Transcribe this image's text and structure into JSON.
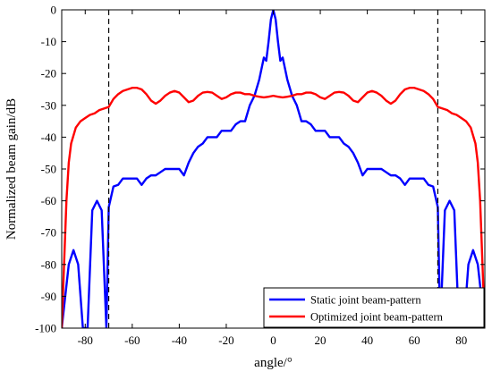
{
  "chart_data": {
    "type": "line",
    "title": "",
    "xlabel": "angle/°",
    "ylabel": "Normalized beam gain/dB",
    "xlim": [
      -90,
      90
    ],
    "ylim": [
      -100,
      0
    ],
    "xticks": [
      -80,
      -60,
      -40,
      -20,
      0,
      20,
      40,
      60,
      80
    ],
    "yticks": [
      0,
      -10,
      -20,
      -30,
      -40,
      -50,
      -60,
      -70,
      -80,
      -90,
      -100
    ],
    "grid": false,
    "legend_position": "bottom-right",
    "reference_lines": [
      {
        "type": "vertical",
        "x": -70,
        "style": "dashed",
        "color": "#000000"
      },
      {
        "type": "vertical",
        "x": 70,
        "style": "dashed",
        "color": "#000000"
      }
    ],
    "series": [
      {
        "name": "Static joint beam-pattern",
        "color": "#0000ff",
        "lobe_pattern": "oscillating sidelobes with deep nulls",
        "points": [
          [
            -90,
            -100
          ],
          [
            -87,
            -80
          ],
          [
            -85,
            -75.5
          ],
          [
            -83,
            -80
          ],
          [
            -81,
            -100
          ],
          [
            -79,
            -100
          ],
          [
            -77,
            -63
          ],
          [
            -75,
            -60
          ],
          [
            -73,
            -63
          ],
          [
            -71,
            -100
          ],
          [
            -70,
            -62
          ],
          [
            -68,
            -55.5
          ],
          [
            -66,
            -55
          ],
          [
            -64,
            -53
          ],
          [
            -62,
            -53
          ],
          [
            -60,
            -53
          ],
          [
            -58,
            -53
          ],
          [
            -56,
            -55
          ],
          [
            -54,
            -53
          ],
          [
            -52,
            -52
          ],
          [
            -50,
            -52
          ],
          [
            -48,
            -51
          ],
          [
            -46,
            -50
          ],
          [
            -44,
            -50
          ],
          [
            -42,
            -50
          ],
          [
            -40,
            -50
          ],
          [
            -38,
            -52
          ],
          [
            -36,
            -48
          ],
          [
            -34,
            -45
          ],
          [
            -32,
            -43
          ],
          [
            -30,
            -42
          ],
          [
            -28,
            -40
          ],
          [
            -26,
            -40
          ],
          [
            -24,
            -40
          ],
          [
            -22,
            -38
          ],
          [
            -20,
            -38
          ],
          [
            -18,
            -38
          ],
          [
            -16,
            -36
          ],
          [
            -14,
            -35
          ],
          [
            -12,
            -35
          ],
          [
            -10,
            -30
          ],
          [
            -8,
            -27
          ],
          [
            -6,
            -22
          ],
          [
            -4,
            -15
          ],
          [
            -3,
            -16
          ],
          [
            -2,
            -10
          ],
          [
            -1,
            -3
          ],
          [
            0,
            0
          ],
          [
            1,
            -3
          ],
          [
            2,
            -10
          ],
          [
            3,
            -16
          ],
          [
            4,
            -15
          ],
          [
            6,
            -22
          ],
          [
            8,
            -27
          ],
          [
            10,
            -30
          ],
          [
            12,
            -35
          ],
          [
            14,
            -35
          ],
          [
            16,
            -36
          ],
          [
            18,
            -38
          ],
          [
            20,
            -38
          ],
          [
            22,
            -38
          ],
          [
            24,
            -40
          ],
          [
            26,
            -40
          ],
          [
            28,
            -40
          ],
          [
            30,
            -42
          ],
          [
            32,
            -43
          ],
          [
            34,
            -45
          ],
          [
            36,
            -48
          ],
          [
            38,
            -52
          ],
          [
            40,
            -50
          ],
          [
            42,
            -50
          ],
          [
            44,
            -50
          ],
          [
            46,
            -50
          ],
          [
            48,
            -51
          ],
          [
            50,
            -52
          ],
          [
            52,
            -52
          ],
          [
            54,
            -53
          ],
          [
            56,
            -55
          ],
          [
            58,
            -53
          ],
          [
            60,
            -53
          ],
          [
            62,
            -53
          ],
          [
            64,
            -53
          ],
          [
            66,
            -55
          ],
          [
            68,
            -55.5
          ],
          [
            70,
            -62
          ],
          [
            71,
            -100
          ],
          [
            73,
            -63
          ],
          [
            75,
            -60
          ],
          [
            77,
            -63
          ],
          [
            79,
            -100
          ],
          [
            81,
            -100
          ],
          [
            83,
            -80
          ],
          [
            85,
            -75.5
          ],
          [
            87,
            -80
          ],
          [
            90,
            -100
          ]
        ]
      },
      {
        "name": "Optimized joint beam-pattern",
        "color": "#ff0000",
        "points": [
          [
            -90,
            -100
          ],
          [
            -89,
            -80
          ],
          [
            -88,
            -60
          ],
          [
            -87,
            -48
          ],
          [
            -86,
            -42
          ],
          [
            -84,
            -37
          ],
          [
            -82,
            -35
          ],
          [
            -80,
            -34
          ],
          [
            -78,
            -33
          ],
          [
            -76,
            -32.5
          ],
          [
            -74,
            -31.5
          ],
          [
            -72,
            -31
          ],
          [
            -70,
            -30.5
          ],
          [
            -68,
            -28
          ],
          [
            -66,
            -26.5
          ],
          [
            -64,
            -25.5
          ],
          [
            -62,
            -25
          ],
          [
            -60,
            -24.5
          ],
          [
            -58,
            -24.5
          ],
          [
            -56,
            -25
          ],
          [
            -54,
            -26.5
          ],
          [
            -52,
            -28.5
          ],
          [
            -50,
            -29.5
          ],
          [
            -48,
            -28.5
          ],
          [
            -46,
            -27
          ],
          [
            -44,
            -26
          ],
          [
            -42,
            -25.5
          ],
          [
            -40,
            -26
          ],
          [
            -38,
            -27.5
          ],
          [
            -36,
            -29
          ],
          [
            -34,
            -28.5
          ],
          [
            -32,
            -27
          ],
          [
            -30,
            -26
          ],
          [
            -28,
            -25.8
          ],
          [
            -26,
            -26
          ],
          [
            -24,
            -27
          ],
          [
            -22,
            -28
          ],
          [
            -20,
            -27.5
          ],
          [
            -18,
            -26.5
          ],
          [
            -16,
            -26
          ],
          [
            -14,
            -26
          ],
          [
            -12,
            -26.5
          ],
          [
            -10,
            -26.5
          ],
          [
            -8,
            -27
          ],
          [
            -6,
            -27.3
          ],
          [
            -4,
            -27.5
          ],
          [
            -2,
            -27.3
          ],
          [
            0,
            -27
          ],
          [
            2,
            -27.3
          ],
          [
            4,
            -27.5
          ],
          [
            6,
            -27.3
          ],
          [
            8,
            -27
          ],
          [
            10,
            -26.5
          ],
          [
            12,
            -26.5
          ],
          [
            14,
            -26
          ],
          [
            16,
            -26
          ],
          [
            18,
            -26.5
          ],
          [
            20,
            -27.5
          ],
          [
            22,
            -28
          ],
          [
            24,
            -27
          ],
          [
            26,
            -26
          ],
          [
            28,
            -25.8
          ],
          [
            30,
            -26
          ],
          [
            32,
            -27
          ],
          [
            34,
            -28.5
          ],
          [
            36,
            -29
          ],
          [
            38,
            -27.5
          ],
          [
            40,
            -26
          ],
          [
            42,
            -25.5
          ],
          [
            44,
            -26
          ],
          [
            46,
            -27
          ],
          [
            48,
            -28.5
          ],
          [
            50,
            -29.5
          ],
          [
            52,
            -28.5
          ],
          [
            54,
            -26.5
          ],
          [
            56,
            -25
          ],
          [
            58,
            -24.5
          ],
          [
            60,
            -24.5
          ],
          [
            62,
            -25
          ],
          [
            64,
            -25.5
          ],
          [
            66,
            -26.5
          ],
          [
            68,
            -28
          ],
          [
            70,
            -30.5
          ],
          [
            72,
            -31
          ],
          [
            74,
            -31.5
          ],
          [
            76,
            -32.5
          ],
          [
            78,
            -33
          ],
          [
            80,
            -34
          ],
          [
            82,
            -35
          ],
          [
            84,
            -37
          ],
          [
            86,
            -42
          ],
          [
            87,
            -48
          ],
          [
            88,
            -60
          ],
          [
            89,
            -80
          ],
          [
            90,
            -100
          ]
        ]
      }
    ]
  }
}
